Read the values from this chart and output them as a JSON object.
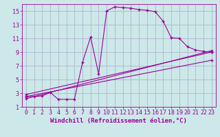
{
  "background_color": "#cce8e8",
  "grid_color": "#aaaacc",
  "line_color": "#990099",
  "marker": "+",
  "xlabel": "Windchill (Refroidissement éolien,°C)",
  "xlim": [
    -0.5,
    23.5
  ],
  "ylim": [
    1,
    16
  ],
  "xticks": [
    0,
    1,
    2,
    3,
    4,
    5,
    6,
    7,
    8,
    9,
    10,
    11,
    12,
    13,
    14,
    15,
    16,
    17,
    18,
    19,
    20,
    21,
    22,
    23
  ],
  "yticks": [
    1,
    3,
    5,
    7,
    9,
    11,
    13,
    15
  ],
  "curve_x": [
    0,
    1,
    2,
    3,
    4,
    5,
    6,
    7,
    8,
    9,
    10,
    11,
    12,
    13,
    14,
    15,
    16,
    17,
    18,
    19,
    20,
    21,
    22,
    23
  ],
  "curve_y": [
    2.5,
    2.5,
    2.6,
    3.1,
    2.1,
    2.1,
    2.1,
    7.5,
    11.2,
    5.8,
    15.0,
    15.6,
    15.5,
    15.4,
    15.2,
    15.1,
    14.9,
    13.5,
    11.1,
    11.0,
    9.8,
    9.3,
    9.1,
    9.0
  ],
  "line2_x": [
    0,
    23
  ],
  "line2_y": [
    2.8,
    9.0
  ],
  "line3_x": [
    0,
    23
  ],
  "line3_y": [
    2.5,
    7.8
  ],
  "line4_x": [
    0,
    23
  ],
  "line4_y": [
    2.2,
    9.2
  ],
  "tick_fontsize": 6,
  "xlabel_fontsize": 6.5
}
